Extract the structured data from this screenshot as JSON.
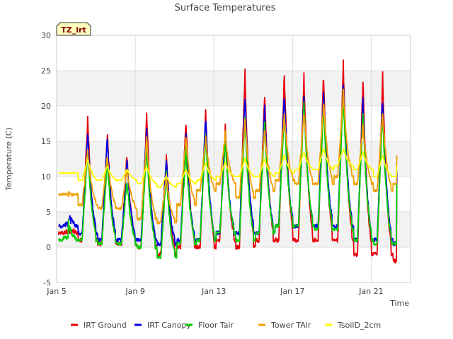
{
  "chart_data": {
    "type": "line",
    "title": "Surface Temperatures",
    "xlabel": "Time",
    "ylabel": "Temperature (C)",
    "badge": "TZ_irt",
    "xlim": [
      0,
      18
    ],
    "ylim": [
      -5,
      30
    ],
    "x_ticks": [
      {
        "x": 0,
        "label": "Jan 5"
      },
      {
        "x": 4,
        "label": "Jan 9"
      },
      {
        "x": 8,
        "label": "Jan 13"
      },
      {
        "x": 12,
        "label": "Jan 17"
      },
      {
        "x": 16,
        "label": "Jan 21"
      }
    ],
    "y_ticks": [
      -5,
      0,
      5,
      10,
      15,
      20,
      25,
      30
    ],
    "grid": true,
    "legend_position": "bottom",
    "series": [
      {
        "name": "IRT Ground",
        "color": "#e8000b",
        "day_x": [
          0.1,
          0.8,
          1.8,
          2.8,
          3.8,
          4.8,
          5.8,
          6.8,
          7.8,
          8.8,
          9.8,
          10.8,
          11.8,
          12.8,
          13.8,
          14.8,
          15.8,
          16.8
        ],
        "lows": [
          2,
          1,
          0.5,
          0.5,
          0,
          -1,
          0,
          0,
          1,
          0,
          1,
          1,
          1,
          1,
          1,
          -1,
          -1,
          -2
        ],
        "highs": [
          3,
          18,
          16,
          13,
          18.5,
          13,
          18,
          19,
          17,
          24.5,
          22,
          24.5,
          24,
          24.5,
          26,
          23.5,
          24,
          23
        ]
      },
      {
        "name": "IRT Canopy",
        "color": "#0000e0",
        "day_x": [
          0.1,
          0.8,
          1.8,
          2.8,
          3.8,
          4.8,
          5.8,
          6.8,
          7.8,
          8.8,
          9.8,
          10.8,
          11.8,
          12.8,
          13.8,
          14.8,
          15.8,
          16.8
        ],
        "lows": [
          3,
          2,
          1,
          1,
          1,
          0.5,
          1,
          1,
          2,
          2,
          2,
          3,
          3,
          3,
          3,
          1,
          1,
          0.5
        ],
        "highs": [
          4.5,
          16,
          15.5,
          12,
          17,
          12,
          15.5,
          18.5,
          16,
          21.5,
          19.5,
          21.5,
          21,
          22.5,
          23.5,
          20.5,
          21,
          21.5
        ]
      },
      {
        "name": "Floor Tair",
        "color": "#00d000",
        "day_x": [
          0.1,
          0.8,
          1.8,
          2.8,
          3.8,
          4.8,
          5.8,
          6.8,
          7.8,
          8.8,
          9.8,
          10.8,
          11.8,
          12.8,
          13.8,
          14.8,
          15.8,
          16.8
        ],
        "lows": [
          1,
          1,
          0.5,
          0.5,
          0,
          -1.5,
          0.5,
          1,
          2,
          1,
          2,
          3,
          3,
          2.5,
          2.5,
          1,
          0.5,
          0.5
        ],
        "highs": [
          3.5,
          14,
          12.5,
          9.5,
          14.5,
          10.5,
          14,
          16,
          15,
          18.5,
          17.5,
          19,
          20.5,
          20,
          22,
          19,
          19,
          17.5
        ]
      },
      {
        "name": "Tower TAir",
        "color": "#f0a000",
        "day_x": [
          0.1,
          0.8,
          1.8,
          2.8,
          3.8,
          4.8,
          5.8,
          6.8,
          7.8,
          8.8,
          9.8,
          10.8,
          11.8,
          12.8,
          13.8,
          14.8,
          15.8,
          16.8
        ],
        "lows": [
          7.5,
          6,
          5.5,
          5.5,
          4,
          3.5,
          6,
          8,
          9,
          7,
          8,
          9.5,
          9,
          9,
          10,
          9,
          8,
          9
        ],
        "highs": [
          7.5,
          13.5,
          13,
          11,
          15.5,
          10,
          15.5,
          15.5,
          16,
          18,
          16.5,
          18.5,
          19,
          20.5,
          22,
          17,
          19,
          17
        ]
      },
      {
        "name": "TsoilD_2cm",
        "color": "#ffff00",
        "day_x": [
          0.1,
          0.8,
          1.8,
          2.8,
          3.8,
          4.8,
          5.8,
          6.8,
          7.8,
          8.8,
          9.8,
          10.8,
          11.8,
          12.8,
          13.8,
          14.8,
          15.8,
          16.8
        ],
        "lows": [
          10.5,
          9.5,
          9.5,
          9.5,
          9,
          8.5,
          9,
          9.5,
          10,
          10,
          10,
          10.5,
          11,
          11,
          11.5,
          11,
          10,
          10
        ],
        "highs": [
          10.5,
          12.5,
          11.5,
          11,
          11.5,
          10,
          11,
          12,
          12,
          12.5,
          12.5,
          13,
          13.5,
          14,
          14,
          13.5,
          13,
          13
        ]
      }
    ]
  }
}
